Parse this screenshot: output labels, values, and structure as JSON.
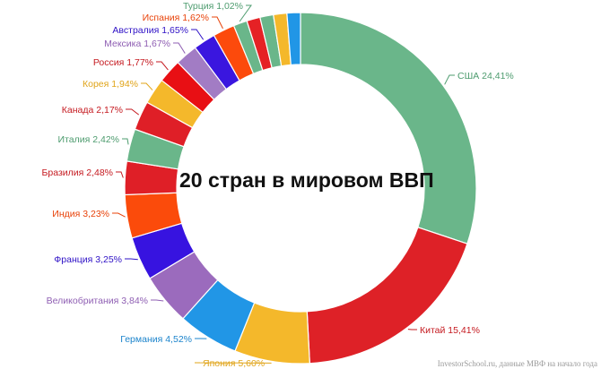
{
  "chart_data": {
    "type": "pie",
    "variant": "donut",
    "title": "20 стран в мировом ВВП",
    "slices": [
      {
        "label": "США 24,41%",
        "value": 24.41,
        "color": "#6ab68a",
        "side": "right"
      },
      {
        "label": "Китай 15,41%",
        "value": 15.41,
        "color": "#de2127",
        "side": "right"
      },
      {
        "label": "Япония 5,60%",
        "value": 5.6,
        "color": "#f4b82b",
        "side": "right"
      },
      {
        "label": "Германия 4,52%",
        "value": 4.52,
        "color": "#2196e6",
        "side": "left"
      },
      {
        "label": "Великобритания 3,84%",
        "value": 3.84,
        "color": "#9b6bbd",
        "side": "left"
      },
      {
        "label": "Франция 3,25%",
        "value": 3.25,
        "color": "#3713e0",
        "side": "left"
      },
      {
        "label": "Индия 3,23%",
        "value": 3.23,
        "color": "#fb4b0b",
        "side": "left"
      },
      {
        "label": "Бразилия 2,48%",
        "value": 2.48,
        "color": "#df1f27",
        "side": "left"
      },
      {
        "label": "Италия 2,42%",
        "value": 2.42,
        "color": "#6ab68a",
        "side": "left"
      },
      {
        "label": "Канада 2,17%",
        "value": 2.17,
        "color": "#df1f27",
        "side": "left"
      },
      {
        "label": "Корея 1,94%",
        "value": 1.94,
        "color": "#f4b82b",
        "side": "left"
      },
      {
        "label": "Россия 1,77%",
        "value": 1.77,
        "color": "#e80f14",
        "side": "left"
      },
      {
        "label": "Мексика 1,67%",
        "value": 1.67,
        "color": "#a27cc4",
        "side": "left"
      },
      {
        "label": "Австралия 1,65%",
        "value": 1.65,
        "color": "#3a16df",
        "side": "left"
      },
      {
        "label": "Испания 1,62%",
        "value": 1.62,
        "color": "#fc4a0c",
        "side": "left"
      },
      {
        "label": "Турция 1,02%",
        "value": 1.02,
        "color": "#6ab68a",
        "side": "left"
      },
      {
        "label": "",
        "value": 1.0,
        "color": "#e52125"
      },
      {
        "label": "",
        "value": 1.0,
        "color": "#6ab68a"
      },
      {
        "label": "",
        "value": 1.0,
        "color": "#f4b82b"
      },
      {
        "label": "",
        "value": 1.0,
        "color": "#2196e6"
      }
    ],
    "text_color_by_label": {
      "США 24,41%": "#4e9c6f",
      "Китай 15,41%": "#c51a20",
      "Япония 5,60%": "#e0a419",
      "Германия 4,52%": "#1c84cc",
      "Великобритания 3,84%": "#8f5fb3",
      "Франция 3,25%": "#2f12c6",
      "Индия 3,23%": "#e8430a",
      "Бразилия 2,48%": "#c51a20",
      "Италия 2,42%": "#4e9c6f",
      "Канада 2,17%": "#c51a20",
      "Корея 1,94%": "#e0a419",
      "Россия 1,77%": "#c51a20",
      "Мексика 1,67%": "#8f5fb3",
      "Австралия 1,65%": "#2f12c6",
      "Испания 1,62%": "#e8430a",
      "Турция 1,02%": "#4e9c6f"
    }
  },
  "source_note": "InvestorSchool.ru, данные МВФ на начало года"
}
